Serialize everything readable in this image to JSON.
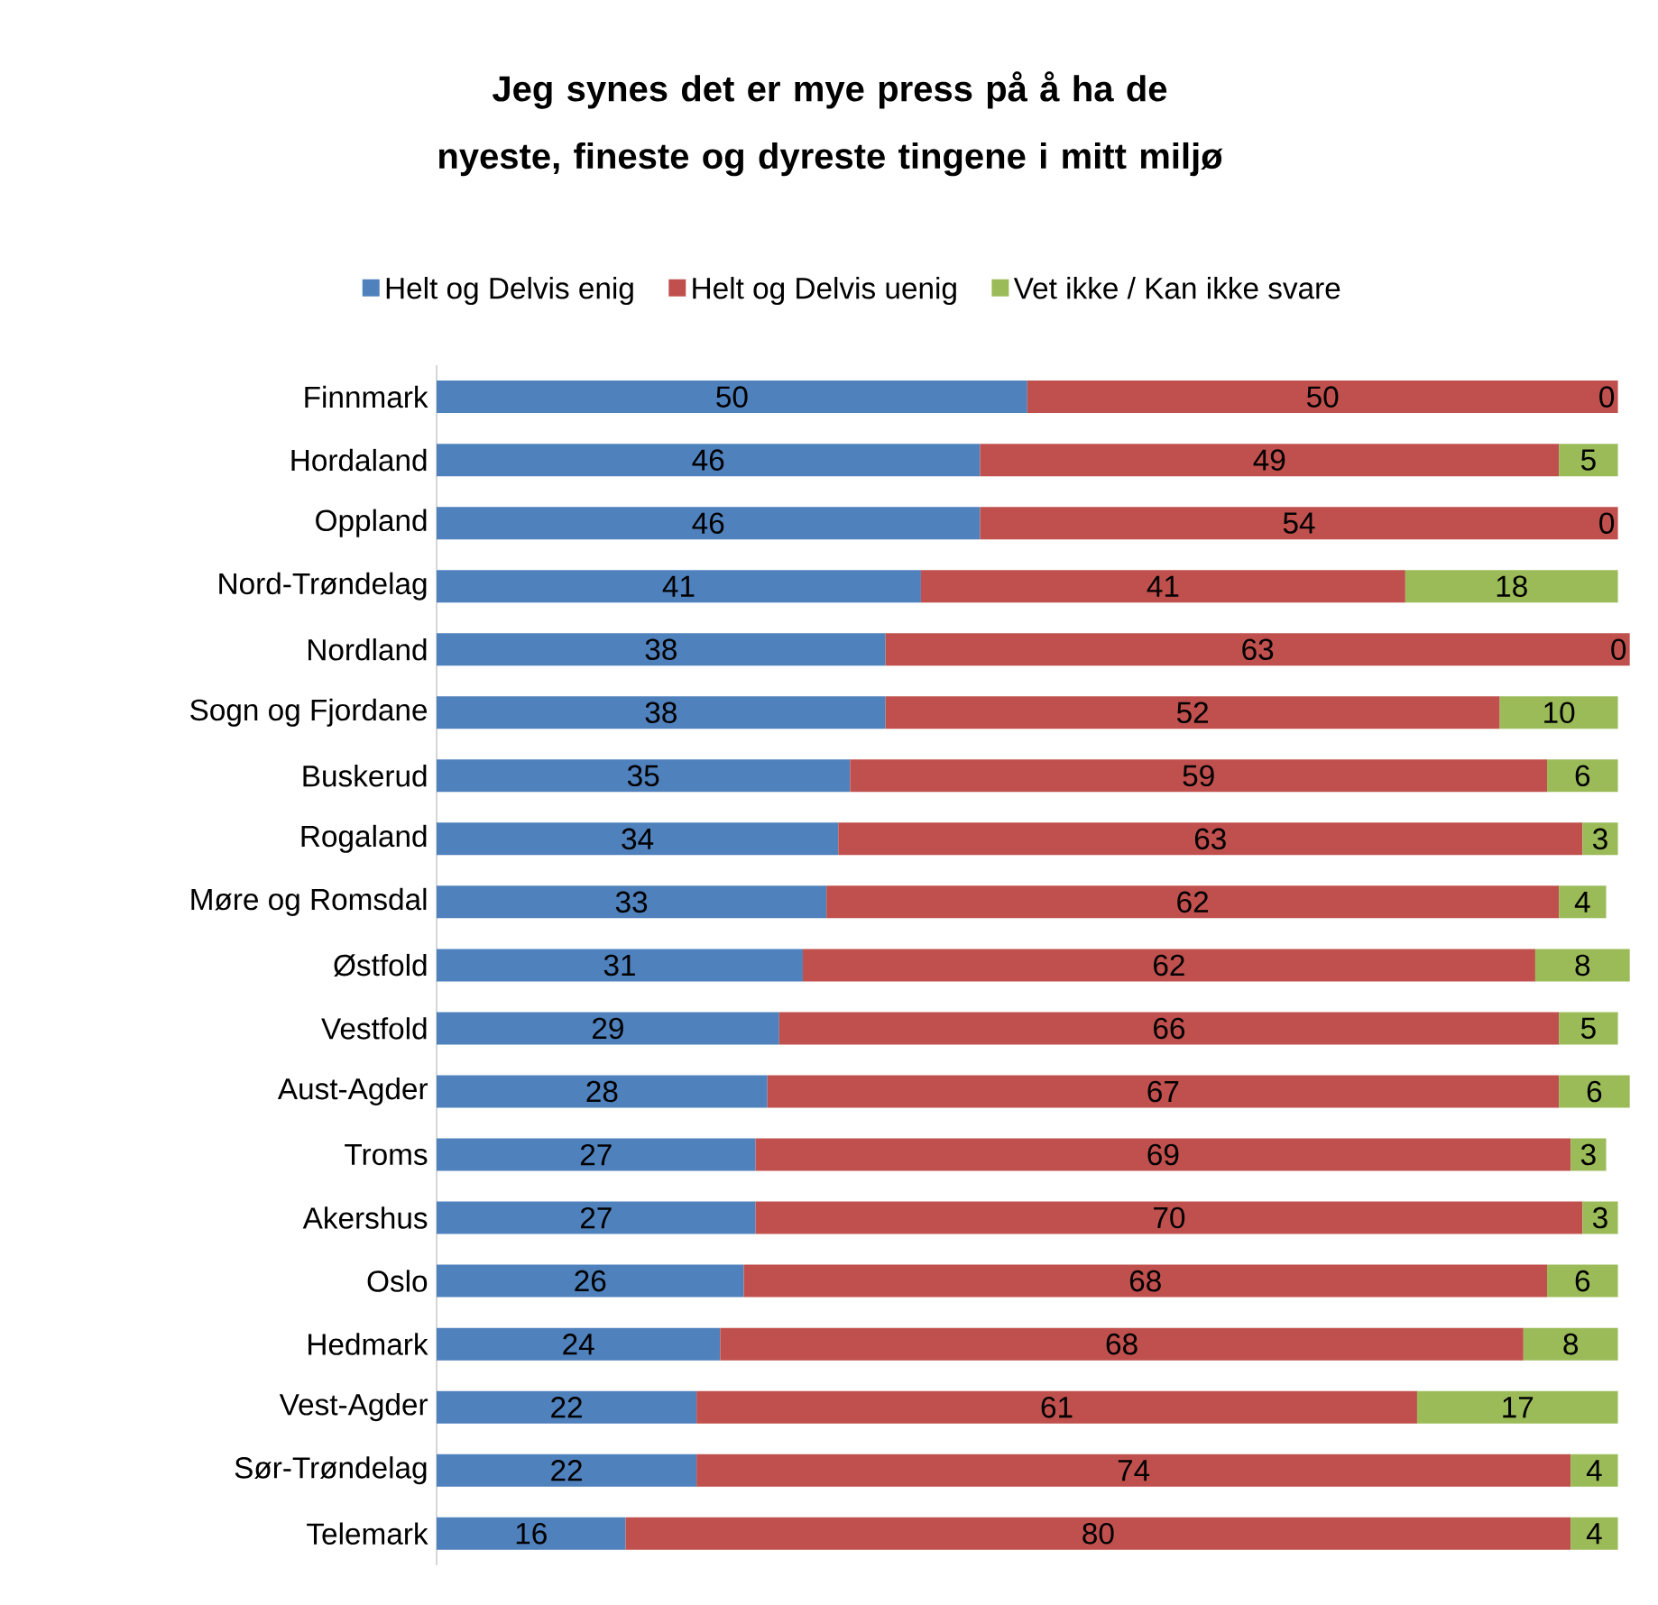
{
  "chart_data": {
    "type": "bar",
    "orientation": "horizontal",
    "stacked": true,
    "data_labels": true,
    "legend": "top",
    "title": "Jeg synes det er mye press på å ha de nyeste, fineste og dyreste tingene i mitt miljø",
    "categories": [
      "Finnmark",
      "Hordaland",
      "Oppland",
      "Nord-Trøndelag",
      "Nordland",
      "Sogn og Fjordane",
      "Buskerud",
      "Rogaland",
      "Møre og Romsdal",
      "Østfold",
      "Vestfold",
      "Aust-Agder",
      "Troms",
      "Akershus",
      "Oslo",
      "Hedmark",
      "Vest-Agder",
      "Sør-Trøndelag",
      "Telemark"
    ],
    "series": [
      {
        "name": "Helt og Delvis enig",
        "color": "#4f81bd",
        "values": [
          50,
          46,
          46,
          41,
          38,
          38,
          35,
          34,
          33,
          31,
          29,
          28,
          27,
          27,
          26,
          24,
          22,
          22,
          16
        ]
      },
      {
        "name": "Helt og Delvis uenig",
        "color": "#c0504d",
        "values": [
          50,
          49,
          54,
          41,
          63,
          52,
          59,
          63,
          62,
          62,
          66,
          67,
          69,
          70,
          68,
          68,
          61,
          74,
          80
        ]
      },
      {
        "name": "Vet ikke / Kan ikke svare",
        "color": "#9bbb59",
        "values": [
          0,
          5,
          0,
          18,
          0,
          10,
          6,
          3,
          4,
          8,
          5,
          6,
          3,
          3,
          6,
          8,
          17,
          4,
          4
        ]
      }
    ]
  }
}
